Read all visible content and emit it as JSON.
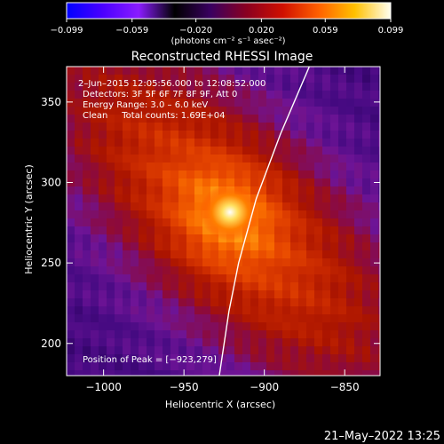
{
  "colorbar": {
    "ticks": [
      "-0.099",
      "-0.059",
      "-0.020",
      "0.020",
      "0.059",
      "0.099"
    ],
    "tick_values": [
      -0.099,
      -0.059,
      -0.02,
      0.02,
      0.059,
      0.099
    ],
    "range": [
      -0.099,
      0.099
    ],
    "units": "(photons cm⁻² s⁻¹ asec⁻²)",
    "colormap": [
      "#0000ff",
      "#4a00ff",
      "#8a1cff",
      "#000000",
      "#3a0060",
      "#8a0020",
      "#d01000",
      "#ff6000",
      "#ffc000",
      "#fffff0"
    ]
  },
  "chart_data": {
    "type": "heatmap",
    "title": "Reconstructed RHESSI Image",
    "xlabel": "Heliocentric X (arcsec)",
    "ylabel": "Heliocentric Y (arcsec)",
    "xlim": [
      -1023,
      -828
    ],
    "ylim": [
      180,
      372
    ],
    "x_ticks": [
      -1000,
      -950,
      -900,
      -850
    ],
    "y_ticks": [
      200,
      250,
      300,
      350
    ],
    "x_tick_labels": [
      "−1000",
      "−950",
      "−900",
      "−850"
    ],
    "y_tick_labels": [
      "200",
      "250",
      "300",
      "350"
    ],
    "annotations": {
      "time": "2–Jun–2015 12:05:56.000 to 12:08:52.000",
      "detectors": "Detectors: 3F 5F 6F 7F 8F 9F, Att 0",
      "energy": "Energy Range: 3.0 – 6.0 keV",
      "clean": "Clean     Total counts: 1.69E+04",
      "peak": "Position of Peak = [−923,279]"
    },
    "peak": {
      "x": -923,
      "y": 279
    },
    "limb": [
      [
        -928,
        180
      ],
      [
        -922,
        220
      ],
      [
        -916,
        250
      ],
      [
        -905,
        290
      ],
      [
        -890,
        330
      ],
      [
        -872,
        372
      ]
    ]
  },
  "footer": {
    "date": "21–May–2022 13:25"
  }
}
